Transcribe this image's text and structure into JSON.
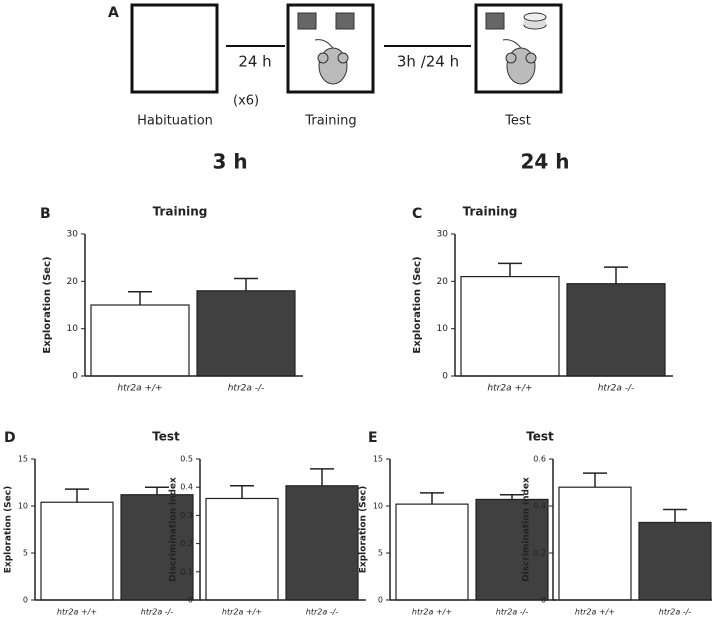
{
  "diagram": {
    "panel": "A",
    "labels": [
      "Habituation",
      "Training",
      "Test"
    ],
    "repeat": "(x6)",
    "delays": [
      "24 h",
      "3h /24 h"
    ],
    "columns": [
      "3 h",
      "24 h"
    ]
  },
  "chart_data": [
    {
      "type": "bar",
      "panel": "B",
      "title": "Training",
      "ylabel": "Exploration (Sec)",
      "categories": [
        "htr2a +/+",
        "htr2a -/-"
      ],
      "values": [
        15,
        18
      ],
      "errors": [
        2.8,
        2.6
      ],
      "colors": [
        "#ffffff",
        "#404040"
      ],
      "ylim": [
        0,
        30
      ],
      "yticks": [
        0,
        10,
        20,
        30
      ]
    },
    {
      "type": "bar",
      "panel": "C",
      "title": "Training",
      "ylabel": "Exploration (Sec)",
      "categories": [
        "htr2a +/+",
        "htr2a -/-"
      ],
      "values": [
        21,
        19.5
      ],
      "errors": [
        2.8,
        3.5
      ],
      "colors": [
        "#ffffff",
        "#404040"
      ],
      "ylim": [
        0,
        30
      ],
      "yticks": [
        0,
        10,
        20,
        30
      ]
    },
    {
      "type": "bar",
      "panel": "D",
      "title": "Test",
      "ylabel": "Exploration (Sec)",
      "categories": [
        "htr2a +/+",
        "htr2a -/-"
      ],
      "values": [
        10.4,
        11.2
      ],
      "errors": [
        1.4,
        0.8
      ],
      "colors": [
        "#ffffff",
        "#404040"
      ],
      "ylim": [
        0,
        15
      ],
      "yticks": [
        0,
        5,
        10,
        15
      ]
    },
    {
      "type": "bar",
      "ylabel": "Discrimination index",
      "categories": [
        "htr2a +/+",
        "htr2a -/-"
      ],
      "values": [
        0.36,
        0.405
      ],
      "errors": [
        0.045,
        0.06
      ],
      "colors": [
        "#ffffff",
        "#404040"
      ],
      "ylim": [
        0,
        0.5
      ],
      "yticks": [
        0,
        0.1,
        0.2,
        0.3,
        0.4,
        0.5
      ]
    },
    {
      "type": "bar",
      "panel": "E",
      "title": "Test",
      "ylabel": "Exploration (Sec)",
      "categories": [
        "htr2a +/+",
        "htr2a -/-"
      ],
      "values": [
        10.2,
        10.7
      ],
      "errors": [
        1.2,
        0.5
      ],
      "colors": [
        "#ffffff",
        "#404040"
      ],
      "ylim": [
        0,
        15
      ],
      "yticks": [
        0,
        5,
        10,
        15
      ]
    },
    {
      "type": "bar",
      "ylabel": "Discrimination index",
      "categories": [
        "htr2a +/+",
        "htr2a -/-"
      ],
      "values": [
        0.48,
        0.33
      ],
      "errors": [
        0.06,
        0.055
      ],
      "colors": [
        "#ffffff",
        "#404040"
      ],
      "ylim": [
        0,
        0.6
      ],
      "yticks": [
        0,
        0.2,
        0.4,
        0.6
      ]
    }
  ]
}
